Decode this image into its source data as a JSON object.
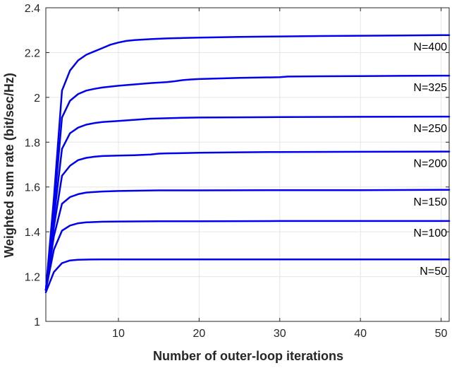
{
  "chart_data": {
    "type": "line",
    "title": "",
    "xlabel": "Number of outer-loop iterations",
    "ylabel": "Weighted sum rate (bit/sec/Hz)",
    "xlim": [
      1,
      51
    ],
    "ylim": [
      1,
      2.4
    ],
    "xticks": [
      10,
      20,
      30,
      40,
      50
    ],
    "xtick_labels": [
      "10",
      "20",
      "30",
      "40",
      "50"
    ],
    "yticks": [
      1,
      1.2,
      1.4,
      1.6,
      1.8,
      2,
      2.2,
      2.4
    ],
    "ytick_labels": [
      "1",
      "1.2",
      "1.4",
      "1.6",
      "1.8",
      "2",
      "2.2",
      "2.4"
    ],
    "grid": true,
    "line_color": "#0000ee",
    "series": [
      {
        "name": "N=400",
        "x": [
          1,
          2,
          3,
          4,
          5,
          6,
          7,
          8,
          9,
          10,
          11,
          12,
          14,
          16,
          18,
          20,
          25,
          30,
          35,
          40,
          45,
          50,
          51
        ],
        "y": [
          1.14,
          1.55,
          2.03,
          2.12,
          2.165,
          2.19,
          2.205,
          2.22,
          2.235,
          2.245,
          2.252,
          2.256,
          2.26,
          2.263,
          2.265,
          2.267,
          2.27,
          2.272,
          2.274,
          2.275,
          2.276,
          2.278,
          2.278
        ]
      },
      {
        "name": "N=325",
        "x": [
          1,
          2,
          3,
          4,
          5,
          6,
          7,
          8,
          10,
          12,
          14,
          16,
          17,
          18,
          19,
          20,
          25,
          30,
          31,
          35,
          40,
          45,
          50,
          51
        ],
        "y": [
          1.14,
          1.5,
          1.91,
          1.985,
          2.015,
          2.03,
          2.038,
          2.044,
          2.052,
          2.058,
          2.064,
          2.068,
          2.072,
          2.077,
          2.08,
          2.082,
          2.087,
          2.09,
          2.093,
          2.094,
          2.095,
          2.096,
          2.097,
          2.097
        ]
      },
      {
        "name": "N=250",
        "x": [
          1,
          2,
          3,
          4,
          5,
          6,
          7,
          8,
          10,
          12,
          14,
          16,
          18,
          20,
          25,
          30,
          40,
          50,
          51
        ],
        "y": [
          1.14,
          1.46,
          1.77,
          1.84,
          1.865,
          1.878,
          1.885,
          1.89,
          1.895,
          1.9,
          1.905,
          1.907,
          1.909,
          1.91,
          1.911,
          1.912,
          1.913,
          1.914,
          1.914
        ]
      },
      {
        "name": "N=200",
        "x": [
          1,
          2,
          3,
          4,
          5,
          6,
          7,
          8,
          10,
          12,
          14,
          15,
          16,
          18,
          20,
          25,
          30,
          40,
          50,
          51
        ],
        "y": [
          1.14,
          1.42,
          1.65,
          1.695,
          1.72,
          1.73,
          1.735,
          1.738,
          1.74,
          1.742,
          1.745,
          1.749,
          1.75,
          1.751,
          1.753,
          1.755,
          1.756,
          1.757,
          1.758,
          1.758
        ]
      },
      {
        "name": "N=150",
        "x": [
          1,
          2,
          3,
          4,
          5,
          6,
          8,
          10,
          15,
          20,
          30,
          40,
          50,
          51
        ],
        "y": [
          1.14,
          1.38,
          1.525,
          1.555,
          1.568,
          1.575,
          1.58,
          1.582,
          1.585,
          1.585,
          1.586,
          1.586,
          1.587,
          1.587
        ]
      },
      {
        "name": "N=100",
        "x": [
          1,
          2,
          3,
          4,
          5,
          6,
          8,
          10,
          15,
          20,
          30,
          40,
          50,
          51
        ],
        "y": [
          1.14,
          1.32,
          1.405,
          1.428,
          1.438,
          1.442,
          1.445,
          1.446,
          1.447,
          1.447,
          1.448,
          1.448,
          1.448,
          1.448
        ]
      },
      {
        "name": "N=50",
        "x": [
          1,
          2,
          3,
          4,
          5,
          6,
          8,
          10,
          15,
          20,
          30,
          40,
          50,
          51
        ],
        "y": [
          1.13,
          1.22,
          1.26,
          1.272,
          1.275,
          1.276,
          1.277,
          1.277,
          1.277,
          1.277,
          1.277,
          1.277,
          1.277,
          1.277
        ]
      }
    ]
  }
}
